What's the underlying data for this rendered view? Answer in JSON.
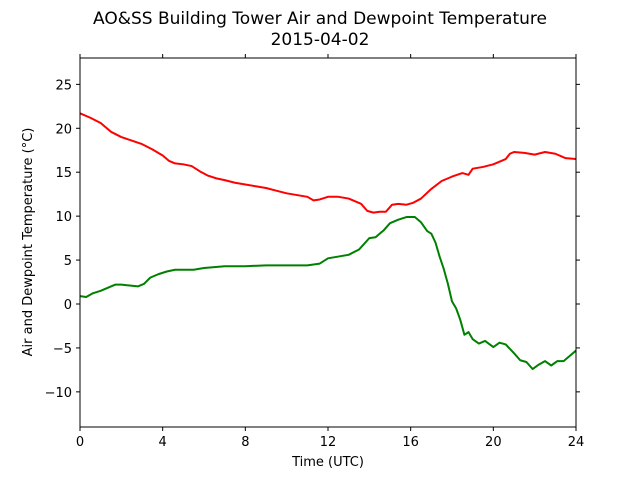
{
  "chart_data": {
    "type": "line",
    "title": "AO&SS Building Tower Air and Dewpoint Temperature",
    "subtitle": "2015-04-02",
    "xlabel": "Time (UTC)",
    "ylabel": "Air and Dewpoint Temperature (°C)",
    "xlim": [
      0,
      24
    ],
    "ylim": [
      -14,
      28
    ],
    "xticks": [
      0,
      4,
      8,
      12,
      16,
      20,
      24
    ],
    "xtick_labels": [
      "0",
      "4",
      "8",
      "12",
      "16",
      "20",
      "24"
    ],
    "yticks": [
      -10,
      -5,
      0,
      5,
      10,
      15,
      20,
      25
    ],
    "ytick_labels": [
      "−10",
      "−5",
      "0",
      "5",
      "10",
      "15",
      "20",
      "25"
    ],
    "grid": false,
    "legend": "none",
    "series": [
      {
        "color": "#ff0000",
        "points": [
          [
            0,
            21.7
          ],
          [
            0.5,
            21.2
          ],
          [
            1.0,
            20.6
          ],
          [
            1.5,
            19.6
          ],
          [
            2.0,
            19.0
          ],
          [
            2.5,
            18.6
          ],
          [
            3.0,
            18.2
          ],
          [
            3.5,
            17.6
          ],
          [
            4.0,
            16.9
          ],
          [
            4.3,
            16.3
          ],
          [
            4.6,
            16.0
          ],
          [
            5.0,
            15.9
          ],
          [
            5.4,
            15.7
          ],
          [
            5.8,
            15.1
          ],
          [
            6.2,
            14.6
          ],
          [
            6.6,
            14.3
          ],
          [
            7.0,
            14.1
          ],
          [
            7.5,
            13.8
          ],
          [
            8.0,
            13.6
          ],
          [
            8.5,
            13.4
          ],
          [
            9.0,
            13.2
          ],
          [
            9.5,
            12.9
          ],
          [
            10.0,
            12.6
          ],
          [
            10.5,
            12.4
          ],
          [
            11.0,
            12.2
          ],
          [
            11.3,
            11.8
          ],
          [
            11.6,
            11.9
          ],
          [
            12.0,
            12.2
          ],
          [
            12.5,
            12.2
          ],
          [
            13.0,
            12.0
          ],
          [
            13.3,
            11.7
          ],
          [
            13.6,
            11.4
          ],
          [
            13.9,
            10.6
          ],
          [
            14.2,
            10.4
          ],
          [
            14.5,
            10.5
          ],
          [
            14.8,
            10.5
          ],
          [
            15.1,
            11.3
          ],
          [
            15.4,
            11.4
          ],
          [
            15.8,
            11.3
          ],
          [
            16.1,
            11.5
          ],
          [
            16.5,
            12.0
          ],
          [
            17.0,
            13.1
          ],
          [
            17.5,
            14.0
          ],
          [
            18.0,
            14.5
          ],
          [
            18.5,
            14.9
          ],
          [
            18.8,
            14.7
          ],
          [
            19.0,
            15.4
          ],
          [
            19.5,
            15.6
          ],
          [
            20.0,
            15.9
          ],
          [
            20.3,
            16.2
          ],
          [
            20.6,
            16.5
          ],
          [
            20.8,
            17.1
          ],
          [
            21.0,
            17.3
          ],
          [
            21.5,
            17.2
          ],
          [
            22.0,
            17.0
          ],
          [
            22.5,
            17.3
          ],
          [
            23.0,
            17.1
          ],
          [
            23.5,
            16.6
          ],
          [
            24.0,
            16.5
          ]
        ]
      },
      {
        "color": "#008000",
        "points": [
          [
            0,
            0.9
          ],
          [
            0.3,
            0.8
          ],
          [
            0.6,
            1.2
          ],
          [
            1.0,
            1.5
          ],
          [
            1.3,
            1.8
          ],
          [
            1.7,
            2.2
          ],
          [
            2.0,
            2.2
          ],
          [
            2.4,
            2.1
          ],
          [
            2.8,
            2.0
          ],
          [
            3.1,
            2.3
          ],
          [
            3.4,
            3.0
          ],
          [
            3.8,
            3.4
          ],
          [
            4.2,
            3.7
          ],
          [
            4.6,
            3.9
          ],
          [
            5.0,
            3.9
          ],
          [
            5.5,
            3.9
          ],
          [
            6.0,
            4.1
          ],
          [
            7.0,
            4.3
          ],
          [
            8.0,
            4.3
          ],
          [
            9.0,
            4.4
          ],
          [
            10.0,
            4.4
          ],
          [
            11.0,
            4.4
          ],
          [
            11.6,
            4.6
          ],
          [
            12.0,
            5.2
          ],
          [
            12.5,
            5.4
          ],
          [
            13.0,
            5.6
          ],
          [
            13.5,
            6.2
          ],
          [
            14.0,
            7.5
          ],
          [
            14.3,
            7.6
          ],
          [
            14.7,
            8.4
          ],
          [
            15.0,
            9.2
          ],
          [
            15.4,
            9.6
          ],
          [
            15.8,
            9.9
          ],
          [
            16.2,
            9.9
          ],
          [
            16.5,
            9.3
          ],
          [
            16.8,
            8.3
          ],
          [
            17.0,
            8.0
          ],
          [
            17.2,
            7.0
          ],
          [
            17.4,
            5.4
          ],
          [
            17.6,
            4.0
          ],
          [
            17.8,
            2.3
          ],
          [
            18.0,
            0.3
          ],
          [
            18.2,
            -0.5
          ],
          [
            18.4,
            -1.8
          ],
          [
            18.6,
            -3.5
          ],
          [
            18.8,
            -3.2
          ],
          [
            19.0,
            -4.0
          ],
          [
            19.3,
            -4.5
          ],
          [
            19.6,
            -4.2
          ],
          [
            20.0,
            -4.9
          ],
          [
            20.3,
            -4.4
          ],
          [
            20.6,
            -4.6
          ],
          [
            21.0,
            -5.6
          ],
          [
            21.3,
            -6.4
          ],
          [
            21.6,
            -6.6
          ],
          [
            21.9,
            -7.4
          ],
          [
            22.2,
            -6.9
          ],
          [
            22.5,
            -6.5
          ],
          [
            22.8,
            -7.0
          ],
          [
            23.1,
            -6.5
          ],
          [
            23.4,
            -6.5
          ],
          [
            23.7,
            -5.9
          ],
          [
            24.0,
            -5.3
          ]
        ]
      }
    ]
  }
}
